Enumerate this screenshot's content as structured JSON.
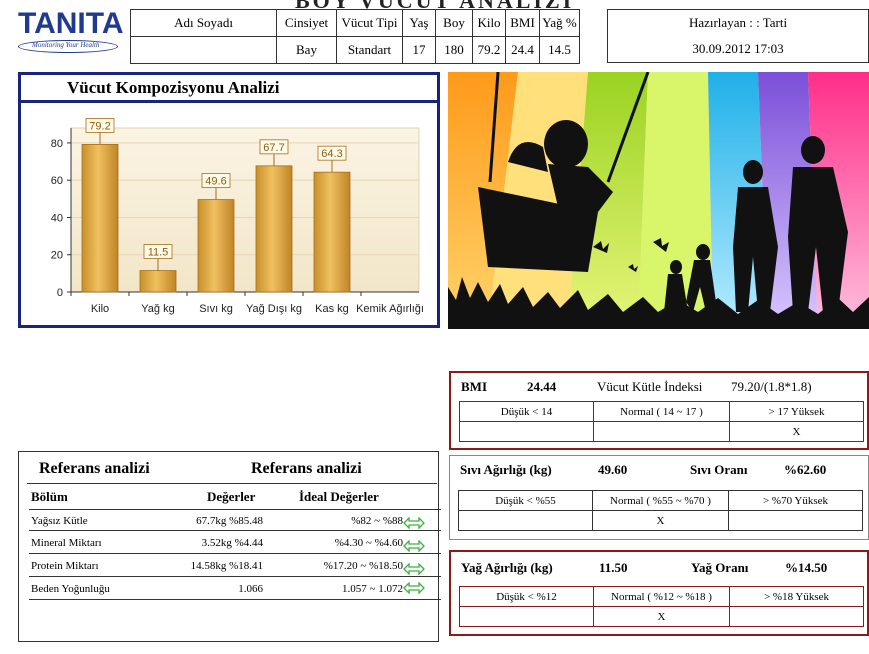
{
  "logo": {
    "brand": "TANITA",
    "tagline": "Monitoring Your Health"
  },
  "page_title": "BOY VÜCUT ANALİZİ",
  "header": {
    "columns": [
      "Adı Soyadı",
      "Cinsiyet",
      "Vücut Tipi",
      "Yaş",
      "Boy",
      "Kilo",
      "BMI",
      "Yağ %"
    ],
    "values": [
      "",
      "Bay",
      "Standart",
      "17",
      "180",
      "79.2",
      "24.4",
      "14.5"
    ]
  },
  "prepared": {
    "by": "Hazırlayan : : Tarti",
    "date": "30.09.2012   17:03"
  },
  "chart_section": {
    "title": "Vücut Kompozisyonu Analizi"
  },
  "chart_data": {
    "type": "bar",
    "categories": [
      "Kilo",
      "Yağ kg",
      "Sıvı kg",
      "Yağ Dışı kg",
      "Kas kg",
      "Kemik Ağırlığı"
    ],
    "values": [
      79.2,
      11.5,
      49.6,
      67.7,
      64.3,
      null
    ],
    "labels": [
      "79.2",
      "11.5",
      "49.6",
      "67.7",
      "64.3",
      ""
    ],
    "yticks": [
      "0",
      "20",
      "40",
      "60",
      "80"
    ],
    "ylim": [
      0,
      88
    ],
    "bar_color": "#d9a43a",
    "grid": true
  },
  "reference": {
    "title_left": "Referans analizi",
    "title_right": "Referans analizi",
    "col_section": "Bölüm",
    "col_values": "Değerler",
    "col_ideal": "İdeal Değerler",
    "rows": [
      {
        "name": "Yağsız Kütle",
        "value": "67.7kg  %85.48",
        "ideal": "%82 ~ %88"
      },
      {
        "name": "Mineral Miktarı",
        "value": "3.52kg   %4.44",
        "ideal": "%4.30 ~ %4.60"
      },
      {
        "name": "Protein Miktarı",
        "value": "14.58kg  %18.41",
        "ideal": "%17.20 ~ %18.50"
      },
      {
        "name": "Beden Yoğunluğu",
        "value": "1.066",
        "ideal": "1.057 ~ 1.072"
      }
    ]
  },
  "bmi": {
    "label": "BMI",
    "value": "24.44",
    "desc": "Vücut Kütle İndeksi",
    "formula": "79.20/(1.8*1.8)",
    "low": "Düşük     < 14",
    "normal": "Normal ( 14 ~ 17 )",
    "high": "> 17     Yüksek",
    "mark": "X"
  },
  "water": {
    "label": "Sıvı Ağırlığı (kg)",
    "value": "49.60",
    "ratio_label": "Sıvı Oranı",
    "ratio": "%62.60",
    "low": "Düşük     < %55",
    "normal": "Normal ( %55 ~ %70 )",
    "high": "> %70     Yüksek",
    "mark": "X"
  },
  "fat": {
    "label": "Yağ Ağırlığı (kg)",
    "value": "11.50",
    "ratio_label": "Yağ Oranı",
    "ratio": "%14.50",
    "low": "Düşük     < %12",
    "normal": "Normal ( %12 ~ %18 )",
    "high": "> %18     Yüksek",
    "mark": "X"
  }
}
